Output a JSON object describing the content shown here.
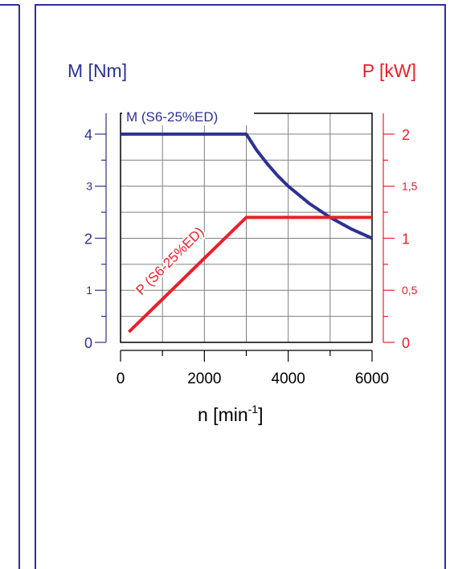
{
  "chart_data": {
    "type": "line",
    "xlabel": "n [min",
    "xlabel_sup": "-1",
    "xlabel_close": "]",
    "x_ticks": [
      "0",
      "2000",
      "4000",
      "6000"
    ],
    "xlim": [
      0,
      6000
    ],
    "left_axis": {
      "label": "M [Nm]",
      "ticks": [
        "0",
        "1",
        "2",
        "3",
        "4"
      ],
      "ylim": [
        0,
        4.4
      ],
      "color": "#2e3192"
    },
    "right_axis": {
      "label": "P [kW]",
      "ticks": [
        "0",
        "0,5",
        "1",
        "1,5",
        "2"
      ],
      "ylim": [
        0,
        2.2
      ],
      "color": "#e8202a"
    },
    "grid": true,
    "series": [
      {
        "name": "M (S6-25%ED)",
        "axis": "left",
        "color": "#2e3192",
        "x": [
          0,
          3000,
          3250,
          3500,
          3750,
          4000,
          4500,
          5000,
          5500,
          6000
        ],
        "y": [
          4,
          4,
          3.69,
          3.43,
          3.2,
          3.0,
          2.67,
          2.4,
          2.18,
          2.0
        ]
      },
      {
        "name": "P (S6-25%ED)",
        "axis": "right",
        "color": "#e8202a",
        "x": [
          200,
          3000,
          6000
        ],
        "y": [
          0.1,
          1.2,
          1.2
        ]
      }
    ]
  }
}
